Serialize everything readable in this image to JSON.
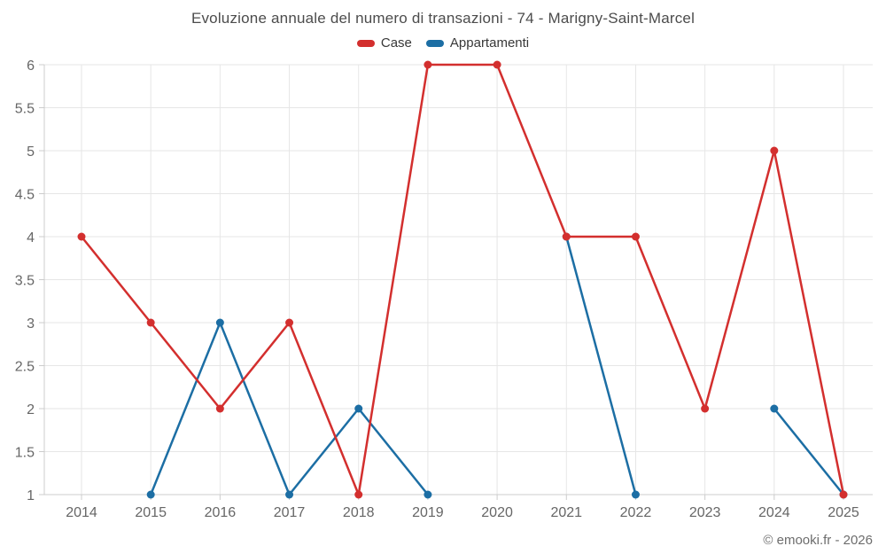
{
  "chart_data": {
    "type": "line",
    "title": "Evoluzione annuale del numero di transazioni - 74 - Marigny-Saint-Marcel",
    "categories": [
      "2014",
      "2015",
      "2016",
      "2017",
      "2018",
      "2019",
      "2020",
      "2021",
      "2022",
      "2023",
      "2024",
      "2025"
    ],
    "series": [
      {
        "name": "Case",
        "color": "#d32f2e",
        "values": [
          4,
          3,
          2,
          3,
          1,
          6,
          6,
          4,
          4,
          2,
          5,
          1
        ]
      },
      {
        "name": "Appartamenti",
        "color": "#1c6ea4",
        "values": [
          null,
          1,
          3,
          1,
          2,
          1,
          null,
          4,
          1,
          null,
          2,
          1
        ]
      }
    ],
    "ylim": [
      1,
      6
    ],
    "ytick_step": 0.5,
    "yticks": [
      6,
      5.5,
      5,
      4.5,
      4,
      3.5,
      3,
      2.5,
      2,
      1.5,
      1
    ],
    "grid": true,
    "legend_position": "top",
    "xlabel": "",
    "ylabel": "",
    "attribution": "© emooki.fr - 2026"
  }
}
